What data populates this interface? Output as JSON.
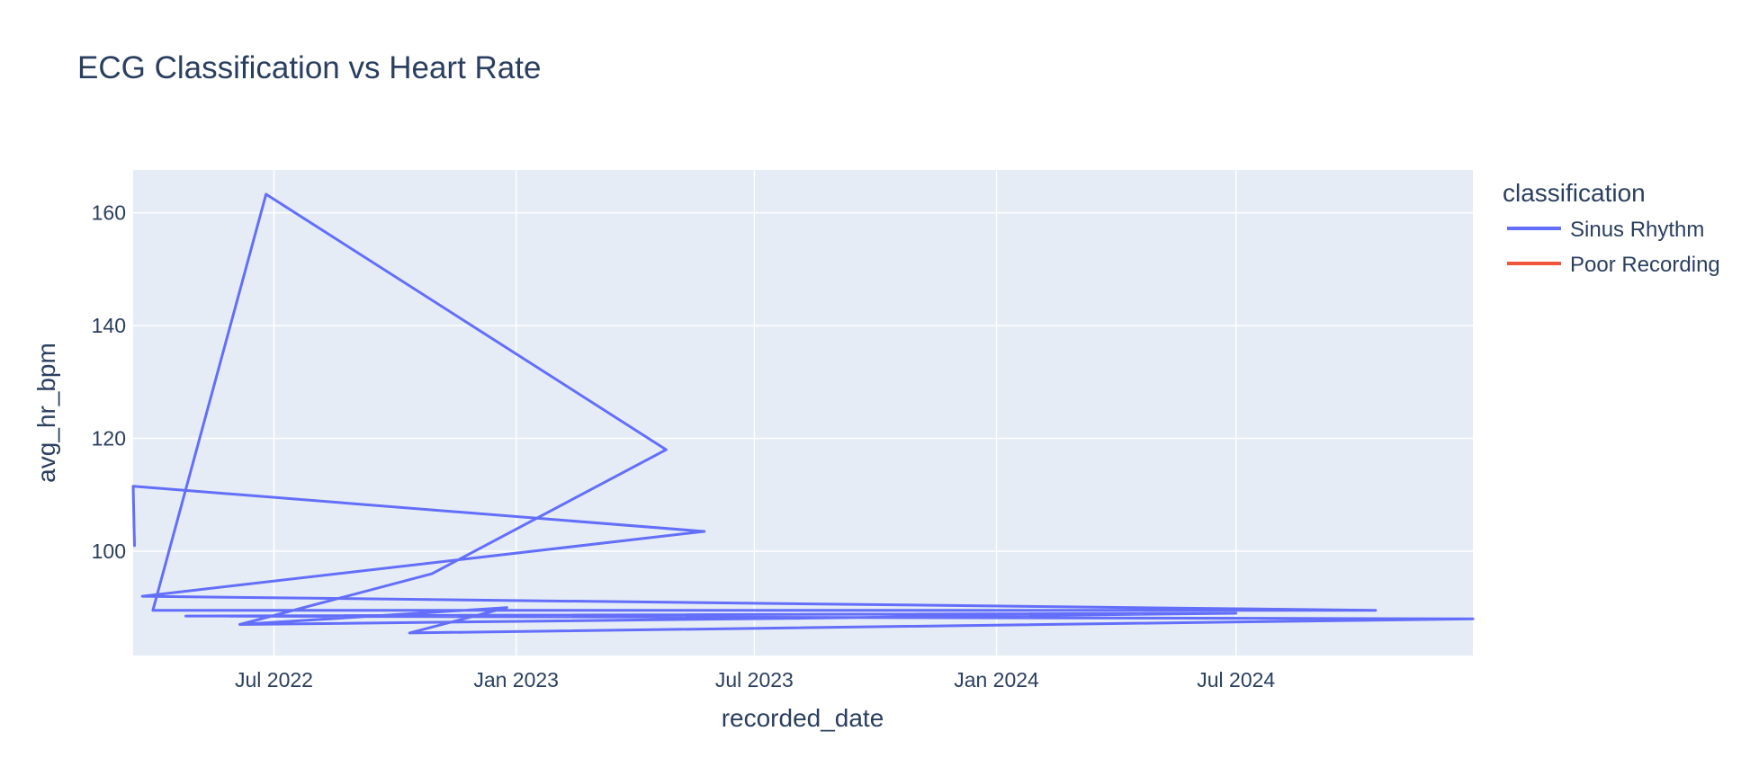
{
  "chart_data": {
    "type": "line",
    "title": "ECG Classification vs Heart Rate",
    "xlabel": "recorded_date",
    "ylabel": "avg_hr_bpm",
    "x_ticks": [
      "Jul 2022",
      "Jan 2023",
      "Jul 2023",
      "Jan 2024",
      "Jul 2024"
    ],
    "x_tick_dates": [
      "2022-07-01",
      "2023-01-01",
      "2023-07-01",
      "2024-01-01",
      "2024-07-01"
    ],
    "xlim": [
      "2022-03-16",
      "2024-12-28"
    ],
    "y_ticks": [
      100,
      120,
      140,
      160
    ],
    "ylim": [
      81.5,
      167.6
    ],
    "grid": true,
    "legend": {
      "title": "classification",
      "position": "right"
    },
    "series": [
      {
        "name": "Sinus Rhythm",
        "color": "#636efa",
        "points": [
          {
            "x": "2022-03-17",
            "y": 101
          },
          {
            "x": "2022-03-16",
            "y": 111.5
          },
          {
            "x": "2023-05-24",
            "y": 103.5
          },
          {
            "x": "2022-03-23",
            "y": 92
          },
          {
            "x": "2024-10-15",
            "y": 89.5
          },
          {
            "x": "2022-03-31",
            "y": 89.5
          },
          {
            "x": "2022-06-25",
            "y": 163.3
          },
          {
            "x": "2023-04-25",
            "y": 118
          },
          {
            "x": "2022-10-29",
            "y": 96
          },
          {
            "x": "2022-06-05",
            "y": 87
          },
          {
            "x": "2022-12-25",
            "y": 90
          },
          {
            "x": "2022-10-12",
            "y": 85.5
          },
          {
            "x": "2024-12-28",
            "y": 88
          },
          {
            "x": "2022-04-25",
            "y": 88.5
          },
          {
            "x": "2024-07-01",
            "y": 89
          },
          {
            "x": "2022-06-05",
            "y": 87
          }
        ]
      },
      {
        "name": "Poor Recording",
        "color": "#ef553b",
        "points": []
      }
    ]
  }
}
